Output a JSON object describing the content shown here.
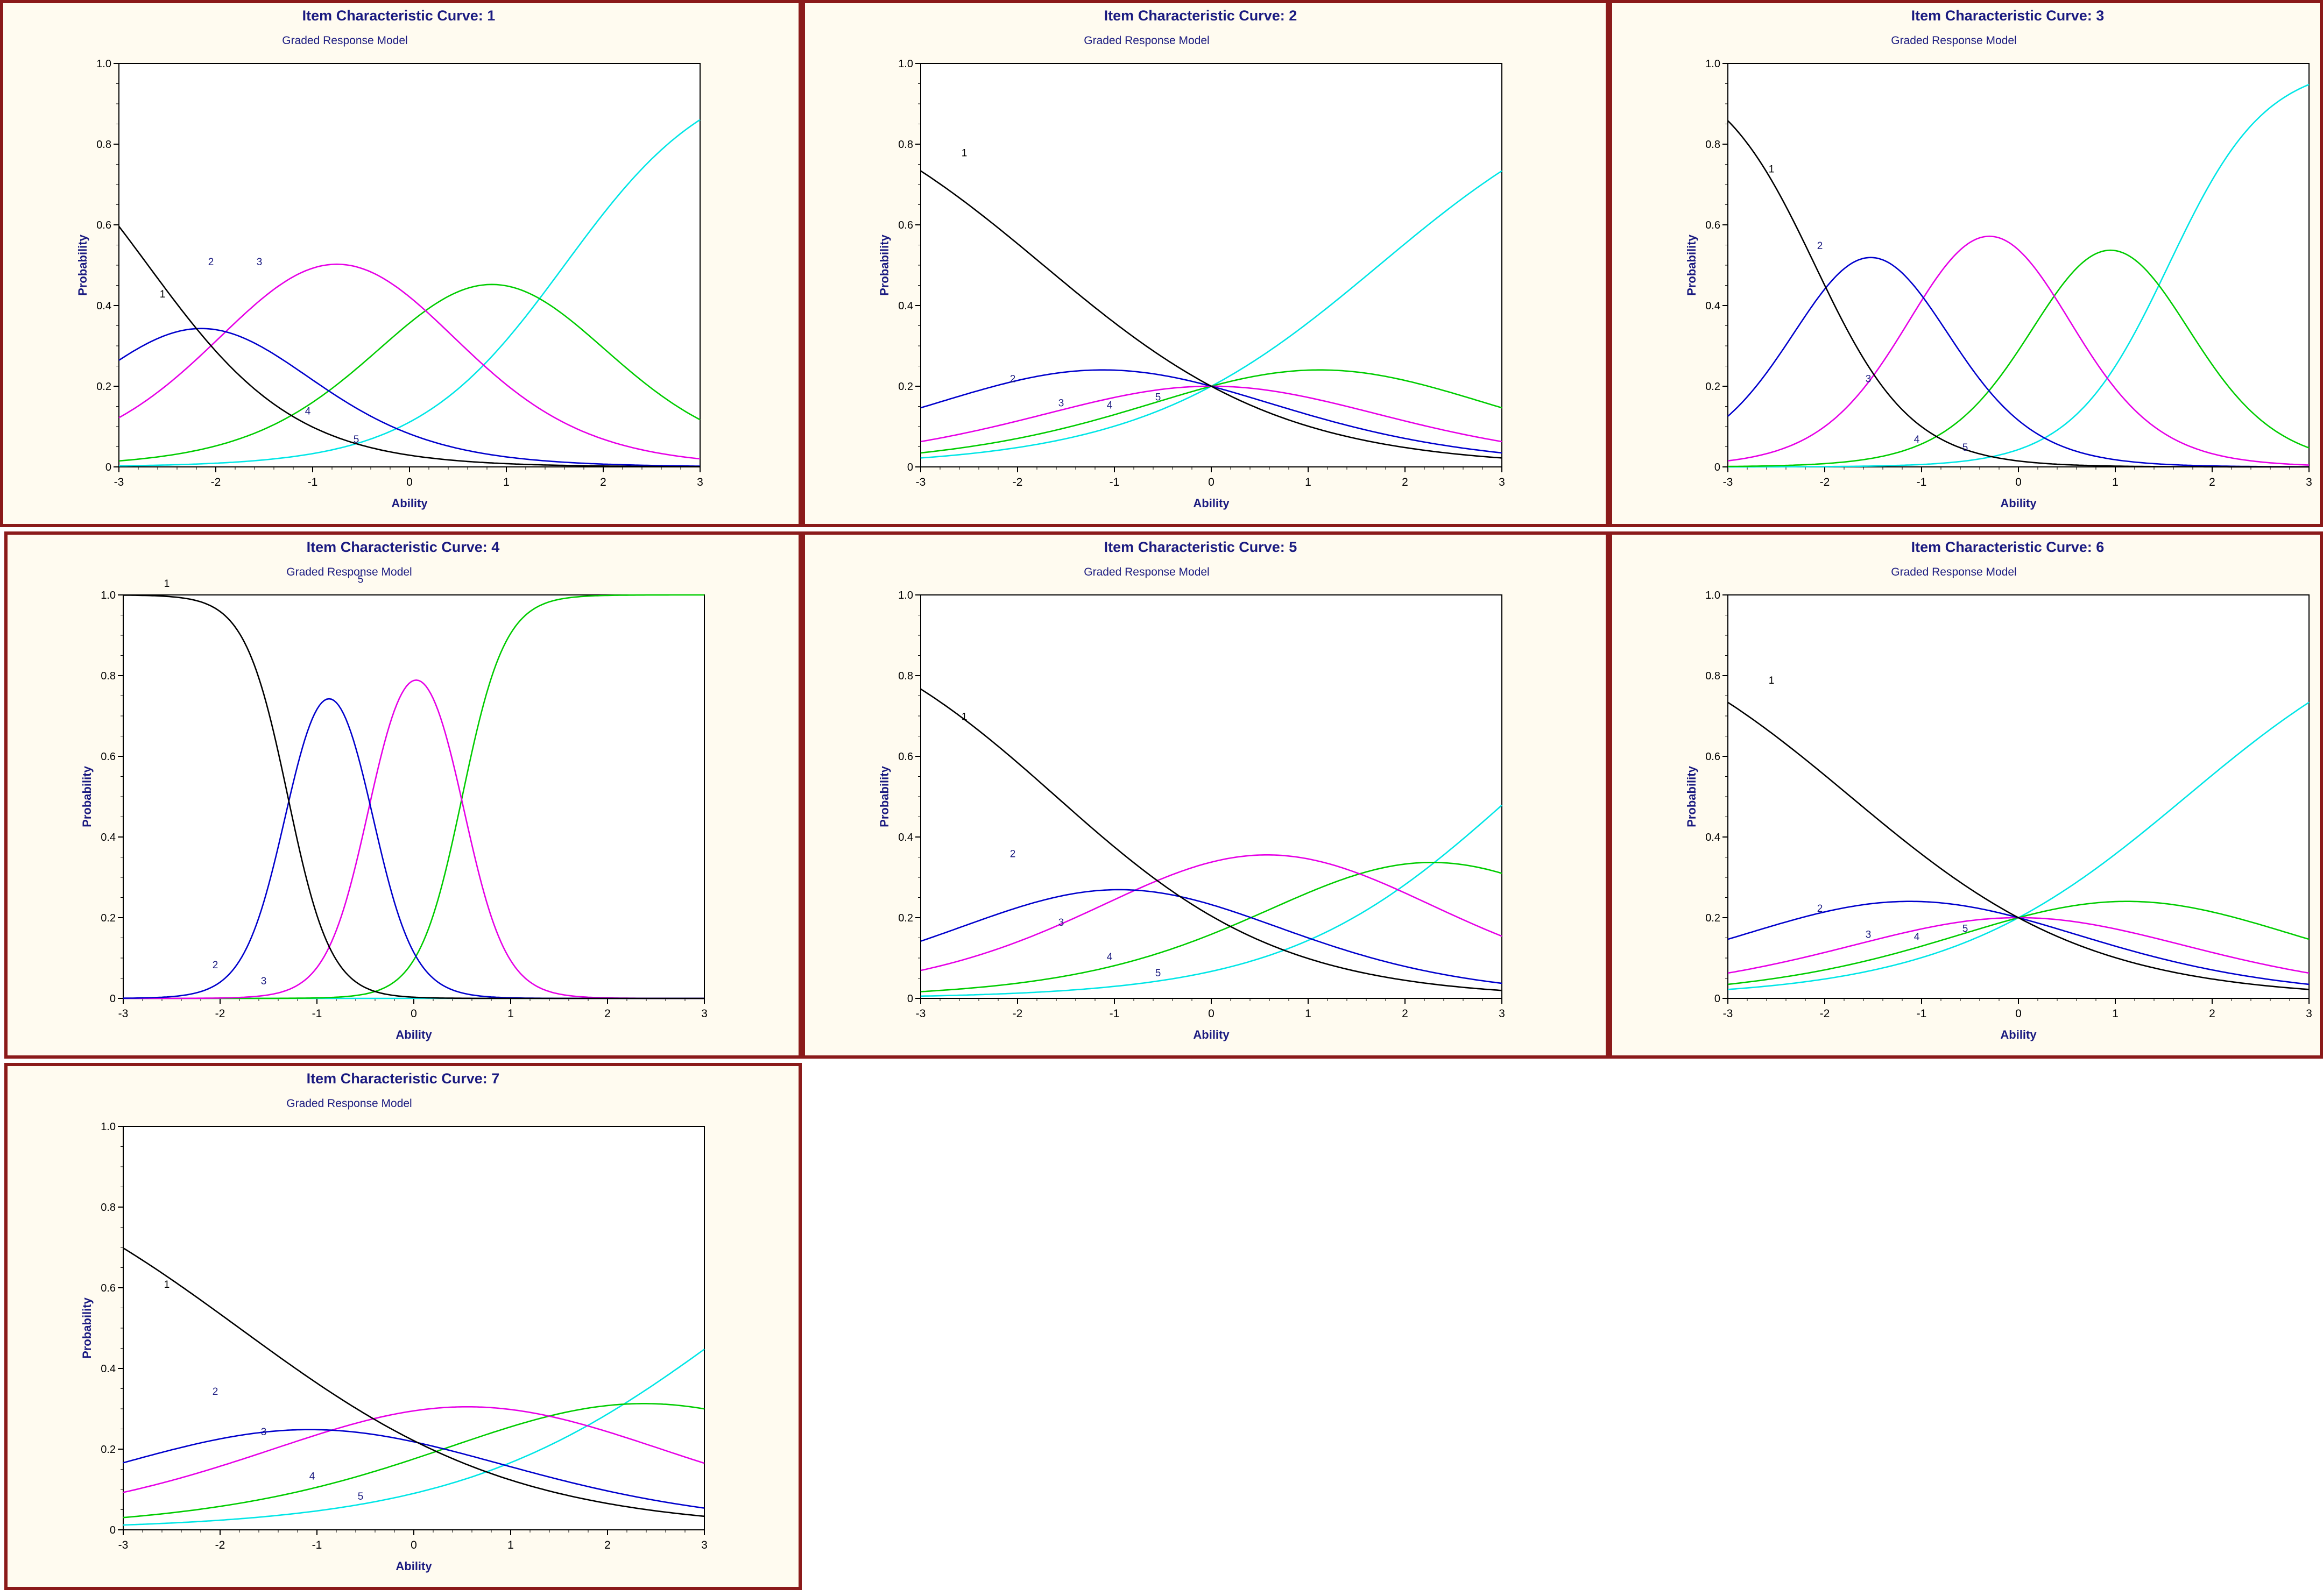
{
  "series_colors": [
    "#000000",
    "#0000cc",
    "#e600e6",
    "#00cc00",
    "#00e6e6"
  ],
  "series_labels": [
    "1",
    "2",
    "3",
    "4",
    "5"
  ],
  "chart_data": [
    {
      "type": "line",
      "title": "Item Characteristic Curve: 1",
      "subtitle": "Graded Response Model",
      "xlabel": "Ability",
      "ylabel": "Probability",
      "xlim": [
        -3,
        3
      ],
      "ylim": [
        0,
        1
      ],
      "xticks": [
        "-3",
        "-2",
        "-1",
        "0",
        "1",
        "2",
        "3"
      ],
      "yticks": [
        "0",
        "0.2",
        "0.4",
        "0.6",
        "0.8",
        "1.0"
      ],
      "irt": {
        "a": 1.3,
        "b": [
          -2.7,
          -1.6,
          0.1,
          1.6
        ]
      },
      "label_points": [
        [
          -2.55,
          0.42
        ],
        [
          -2.05,
          0.5
        ],
        [
          -1.55,
          0.5
        ],
        [
          -1.05,
          0.13
        ],
        [
          -0.55,
          0.06
        ]
      ]
    },
    {
      "type": "line",
      "title": "Item Characteristic Curve: 2",
      "subtitle": "Graded Response Model",
      "xlabel": "Ability",
      "ylabel": "Probability",
      "xlim": [
        -3,
        3
      ],
      "ylim": [
        0,
        1
      ],
      "xticks": [
        "-3",
        "-2",
        "-1",
        "0",
        "1",
        "2",
        "3"
      ],
      "yticks": [
        "0",
        "0.2",
        "0.4",
        "0.6",
        "0.8",
        "1.0"
      ],
      "irt": {
        "a": 0.8,
        "b": [
          -1.733,
          -0.507,
          0.507,
          1.733
        ]
      },
      "label_points": [
        [
          -2.55,
          0.77
        ],
        [
          -2.05,
          0.21
        ],
        [
          -1.55,
          0.15
        ],
        [
          -1.05,
          0.145
        ],
        [
          -0.55,
          0.165
        ]
      ]
    },
    {
      "type": "line",
      "title": "Item Characteristic Curve: 3",
      "subtitle": "Graded Response Model",
      "xlabel": "Ability",
      "ylabel": "Probability",
      "xlim": [
        -3,
        3
      ],
      "ylim": [
        0,
        1
      ],
      "xticks": [
        "-3",
        "-2",
        "-1",
        "0",
        "1",
        "2",
        "3"
      ],
      "yticks": [
        "0",
        "0.2",
        "0.4",
        "0.6",
        "0.8",
        "1.0"
      ],
      "irt": {
        "a": 2.0,
        "b": [
          -2.1,
          -0.95,
          0.35,
          1.55
        ]
      },
      "label_points": [
        [
          -2.55,
          0.73
        ],
        [
          -2.05,
          0.54
        ],
        [
          -1.55,
          0.21
        ],
        [
          -1.05,
          0.06
        ],
        [
          -0.55,
          0.04
        ]
      ]
    },
    {
      "type": "line",
      "title": "Item Characteristic Curve: 4",
      "subtitle": "Graded Response Model",
      "xlabel": "Ability",
      "ylabel": "Probability",
      "xlim": [
        -3,
        3
      ],
      "ylim": [
        0,
        1
      ],
      "xticks": [
        "-3",
        "-2",
        "-1",
        "0",
        "1",
        "2",
        "3"
      ],
      "yticks": [
        "0",
        "0.2",
        "0.4",
        "0.6",
        "0.8",
        "1.0"
      ],
      "irt": {
        "a": 4.5,
        "b": [
          -1.3,
          -0.45,
          0.5,
          15
        ]
      },
      "label_points": [
        [
          -2.55,
          1.02
        ],
        [
          -2.05,
          0.075
        ],
        [
          -1.55,
          0.035
        ],
        [
          -1.05,
          1.05
        ],
        [
          -0.55,
          1.03
        ]
      ],
      "label_visible": [
        true,
        true,
        true,
        false,
        true
      ]
    },
    {
      "type": "line",
      "title": "Item Characteristic Curve: 5",
      "subtitle": "Graded Response Model",
      "xlabel": "Ability",
      "ylabel": "Probability",
      "xlim": [
        -3,
        3
      ],
      "ylim": [
        0,
        1
      ],
      "xticks": [
        "-3",
        "-2",
        "-1",
        "0",
        "1",
        "2",
        "3"
      ],
      "yticks": [
        "0",
        "0.2",
        "0.4",
        "0.6",
        "0.8",
        "1.0"
      ],
      "irt": {
        "a": 0.85,
        "b": [
          -1.6,
          -0.3,
          1.45,
          3.1
        ]
      },
      "label_points": [
        [
          -2.55,
          0.69
        ],
        [
          -2.05,
          0.35
        ],
        [
          -1.55,
          0.18
        ],
        [
          -1.05,
          0.095
        ],
        [
          -0.55,
          0.055
        ]
      ]
    },
    {
      "type": "line",
      "title": "Item Characteristic Curve: 6",
      "subtitle": "Graded Response Model",
      "xlabel": "Ability",
      "ylabel": "Probability",
      "xlim": [
        -3,
        3
      ],
      "ylim": [
        0,
        1
      ],
      "xticks": [
        "-3",
        "-2",
        "-1",
        "0",
        "1",
        "2",
        "3"
      ],
      "yticks": [
        "0",
        "0.2",
        "0.4",
        "0.6",
        "0.8",
        "1.0"
      ],
      "irt": {
        "a": 0.8,
        "b": [
          -1.733,
          -0.507,
          0.507,
          1.733
        ]
      },
      "label_points": [
        [
          -2.55,
          0.78
        ],
        [
          -2.05,
          0.215
        ],
        [
          -1.55,
          0.15
        ],
        [
          -1.05,
          0.145
        ],
        [
          -0.55,
          0.165
        ]
      ]
    },
    {
      "type": "line",
      "title": "Item Characteristic Curve: 7",
      "subtitle": "Graded Response Model",
      "xlabel": "Ability",
      "ylabel": "Probability",
      "xlim": [
        -3,
        3
      ],
      "ylim": [
        0,
        1
      ],
      "xticks": [
        "-3",
        "-2",
        "-1",
        "0",
        "1",
        "2",
        "3"
      ],
      "yticks": [
        "0",
        "0.2",
        "0.4",
        "0.6",
        "0.8",
        "1.0"
      ],
      "irt": {
        "a": 0.7,
        "b": [
          -1.8,
          -0.35,
          1.45,
          3.3
        ]
      },
      "label_points": [
        [
          -2.55,
          0.6
        ],
        [
          -2.05,
          0.335
        ],
        [
          -1.55,
          0.235
        ],
        [
          -1.05,
          0.125
        ],
        [
          -0.55,
          0.075
        ]
      ]
    }
  ]
}
